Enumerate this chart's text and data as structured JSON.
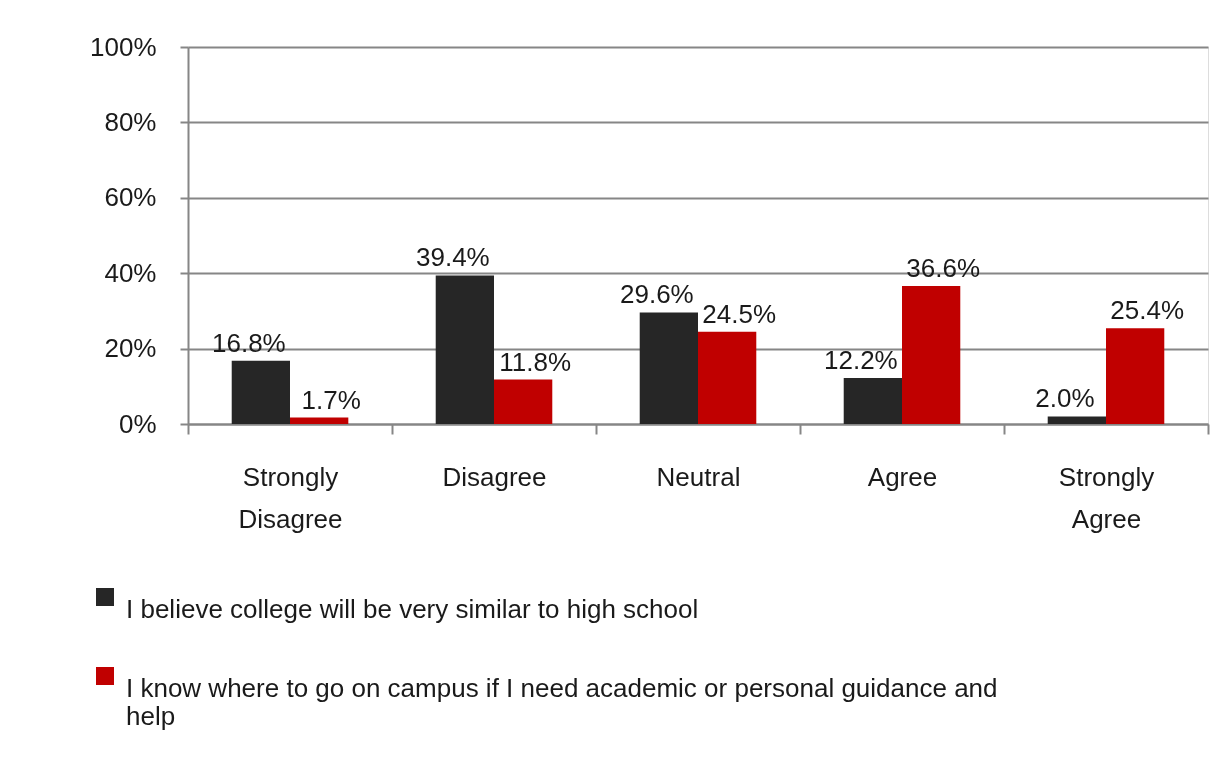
{
  "chart_data": {
    "type": "bar",
    "categories": [
      "Strongly Disagree",
      "Disagree",
      "Neutral",
      "Agree",
      "Strongly Agree"
    ],
    "series": [
      {
        "name": "I believe college will be very similar to high school",
        "color": "#262626",
        "values": [
          16.8,
          39.4,
          29.6,
          12.2,
          2.0
        ],
        "value_labels": [
          "16.8%",
          "39.4%",
          "29.6%",
          "12.2%",
          "2.0%"
        ]
      },
      {
        "name": "I know where to go on campus if I need academic or personal guidance and help",
        "color": "#c00000",
        "values": [
          1.7,
          11.8,
          24.5,
          36.6,
          25.4
        ],
        "value_labels": [
          "1.7%",
          "11.8%",
          "24.5%",
          "36.6%",
          "25.4%"
        ]
      }
    ],
    "ylim": [
      0,
      100
    ],
    "yticks": [
      {
        "value": 0,
        "label": "0%"
      },
      {
        "value": 20,
        "label": "20%"
      },
      {
        "value": 40,
        "label": "40%"
      },
      {
        "value": 60,
        "label": "60%"
      },
      {
        "value": 80,
        "label": "80%"
      },
      {
        "value": 100,
        "label": "100%"
      }
    ],
    "grid": "y",
    "legend": "bottom"
  }
}
